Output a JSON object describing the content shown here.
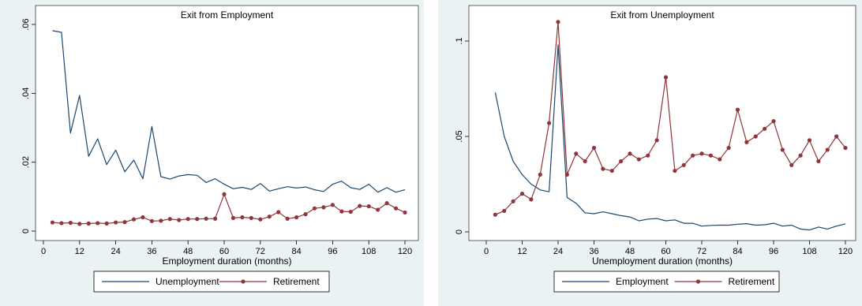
{
  "colors": {
    "series_blue": "#1a476f",
    "series_red": "#90353b",
    "panel_bg": "#eaf2f3"
  },
  "chart_data": [
    {
      "type": "line",
      "title": "Exit from Employment",
      "xlabel": "Employment duration (months)",
      "ylabel": "",
      "xlim": [
        0,
        120
      ],
      "ylim": [
        0,
        0.06
      ],
      "xticks": [
        "0",
        "12",
        "24",
        "36",
        "48",
        "60",
        "72",
        "84",
        "96",
        "108",
        "120"
      ],
      "yticks": [
        {
          "v": 0,
          "label": "0"
        },
        {
          "v": 0.02,
          "label": ".02"
        },
        {
          "v": 0.04,
          "label": ".04"
        },
        {
          "v": 0.06,
          "label": ".06"
        }
      ],
      "grid": false,
      "legend": "bottom",
      "series": [
        {
          "name": "Unemployment",
          "markers": false,
          "x": [
            3,
            6,
            9,
            12,
            15,
            18,
            21,
            24,
            27,
            30,
            33,
            36,
            39,
            42,
            45,
            48,
            51,
            54,
            57,
            60,
            63,
            66,
            69,
            72,
            75,
            78,
            81,
            84,
            87,
            90,
            93,
            96,
            99,
            102,
            105,
            108,
            111,
            114,
            117,
            120
          ],
          "y": [
            0.0582,
            0.0577,
            0.0285,
            0.0394,
            0.0217,
            0.0268,
            0.0193,
            0.0235,
            0.0172,
            0.0206,
            0.0152,
            0.0304,
            0.0158,
            0.0151,
            0.016,
            0.0164,
            0.0162,
            0.0141,
            0.0152,
            0.0136,
            0.0123,
            0.0127,
            0.0121,
            0.0138,
            0.0116,
            0.0123,
            0.0129,
            0.0125,
            0.0128,
            0.012,
            0.0115,
            0.0136,
            0.0145,
            0.0126,
            0.0121,
            0.0136,
            0.0113,
            0.0126,
            0.0113,
            0.012
          ]
        },
        {
          "name": "Retirement",
          "markers": true,
          "x": [
            3,
            6,
            9,
            12,
            15,
            18,
            21,
            24,
            27,
            30,
            33,
            36,
            39,
            42,
            45,
            48,
            51,
            54,
            57,
            60,
            63,
            66,
            69,
            72,
            75,
            78,
            81,
            84,
            87,
            90,
            93,
            96,
            99,
            102,
            105,
            108,
            111,
            114,
            117,
            120
          ],
          "y": [
            0.0025,
            0.0023,
            0.0024,
            0.0021,
            0.0022,
            0.0023,
            0.0022,
            0.0025,
            0.0026,
            0.0034,
            0.004,
            0.0029,
            0.003,
            0.0035,
            0.0032,
            0.0035,
            0.0035,
            0.0036,
            0.0036,
            0.0107,
            0.0038,
            0.004,
            0.0038,
            0.0034,
            0.0042,
            0.0055,
            0.0036,
            0.004,
            0.0049,
            0.0066,
            0.0069,
            0.0076,
            0.0057,
            0.0056,
            0.0073,
            0.0072,
            0.0062,
            0.0081,
            0.0066,
            0.0054
          ]
        }
      ]
    },
    {
      "type": "line",
      "title": "Exit from Unemployment",
      "xlabel": "Unemployment duration (months)",
      "ylabel": "",
      "xlim": [
        0,
        120
      ],
      "ylim": [
        0,
        0.11
      ],
      "xticks": [
        "0",
        "12",
        "24",
        "36",
        "48",
        "60",
        "72",
        "84",
        "96",
        "108",
        "120"
      ],
      "yticks": [
        {
          "v": 0,
          "label": "0"
        },
        {
          "v": 0.05,
          "label": ".05"
        },
        {
          "v": 0.1,
          "label": ".1"
        }
      ],
      "grid": false,
      "legend": "bottom",
      "series": [
        {
          "name": "Employment",
          "markers": false,
          "x": [
            3,
            6,
            9,
            12,
            15,
            18,
            21,
            24,
            27,
            30,
            33,
            36,
            39,
            42,
            45,
            48,
            51,
            54,
            57,
            60,
            63,
            66,
            69,
            72,
            75,
            78,
            81,
            84,
            87,
            90,
            93,
            96,
            99,
            102,
            105,
            108,
            111,
            114,
            117,
            120
          ],
          "y": [
            0.073,
            0.05,
            0.037,
            0.03,
            0.025,
            0.022,
            0.021,
            0.098,
            0.018,
            0.015,
            0.01,
            0.0095,
            0.0105,
            0.0095,
            0.0085,
            0.0078,
            0.0058,
            0.0067,
            0.007,
            0.0058,
            0.0063,
            0.0045,
            0.0045,
            0.003,
            0.0034,
            0.0035,
            0.0035,
            0.004,
            0.0043,
            0.0035,
            0.0037,
            0.0045,
            0.003,
            0.0035,
            0.0015,
            0.001,
            0.0025,
            0.0015,
            0.003,
            0.0042
          ]
        },
        {
          "name": "Retirement",
          "markers": true,
          "x": [
            3,
            6,
            9,
            12,
            15,
            18,
            21,
            24,
            27,
            30,
            33,
            36,
            39,
            42,
            45,
            48,
            51,
            54,
            57,
            60,
            63,
            66,
            69,
            72,
            75,
            78,
            81,
            84,
            87,
            90,
            93,
            96,
            99,
            102,
            105,
            108,
            111,
            114,
            117,
            120
          ],
          "y": [
            0.009,
            0.011,
            0.016,
            0.02,
            0.017,
            0.03,
            0.057,
            0.11,
            0.03,
            0.041,
            0.037,
            0.044,
            0.033,
            0.032,
            0.037,
            0.041,
            0.038,
            0.04,
            0.048,
            0.081,
            0.032,
            0.035,
            0.04,
            0.041,
            0.04,
            0.038,
            0.044,
            0.064,
            0.047,
            0.05,
            0.054,
            0.058,
            0.043,
            0.035,
            0.04,
            0.048,
            0.037,
            0.043,
            0.05,
            0.044
          ]
        }
      ]
    }
  ]
}
